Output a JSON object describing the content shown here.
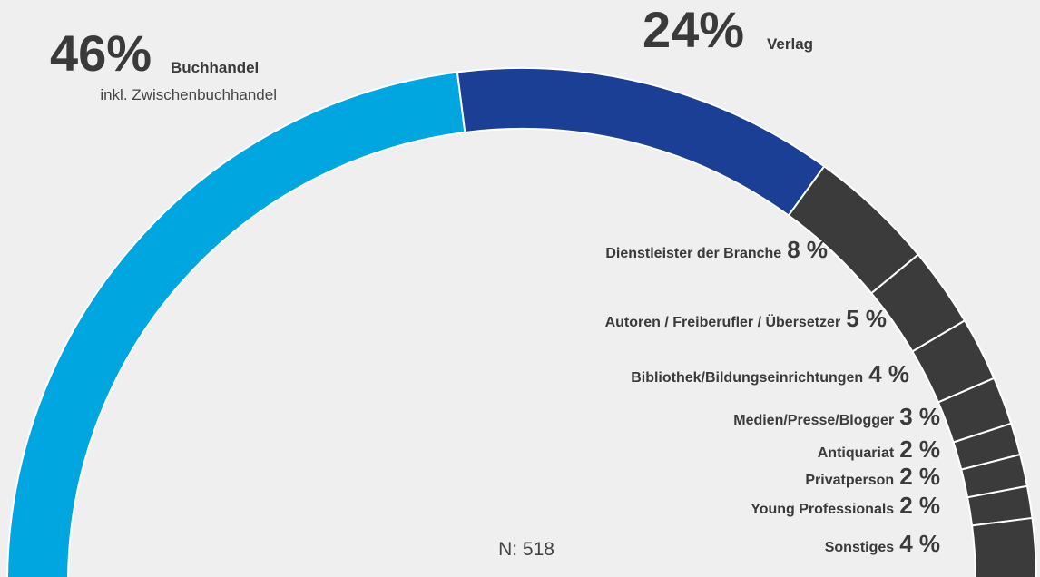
{
  "chart_data": {
    "type": "pie",
    "categories": [
      "Buchhandel",
      "Verlag",
      "Dienstleister der Branche",
      "Autoren / Freiberufler / Übersetzer",
      "Bibliothek/Bildungseinrichtungen",
      "Medien/Presse/Blogger",
      "Antiquariat",
      "Privatperson",
      "Young Professionals",
      "Sonstiges"
    ],
    "values": [
      46,
      24,
      8,
      5,
      4,
      3,
      2,
      2,
      2,
      4
    ],
    "value_labels": [
      "46%",
      "24%",
      "8 %",
      "5 %",
      "4 %",
      "3 %",
      "2 %",
      "2 %",
      "2 %",
      "4 %"
    ],
    "colors": [
      "#00a6e0",
      "#1a3f94",
      "#3b3b3b",
      "#3b3b3b",
      "#3b3b3b",
      "#3b3b3b",
      "#3b3b3b",
      "#3b3b3b",
      "#3b3b3b",
      "#3b3b3b"
    ],
    "annotations": [
      "inkl. Zwischenbuchhandel",
      "N: 518"
    ]
  }
}
